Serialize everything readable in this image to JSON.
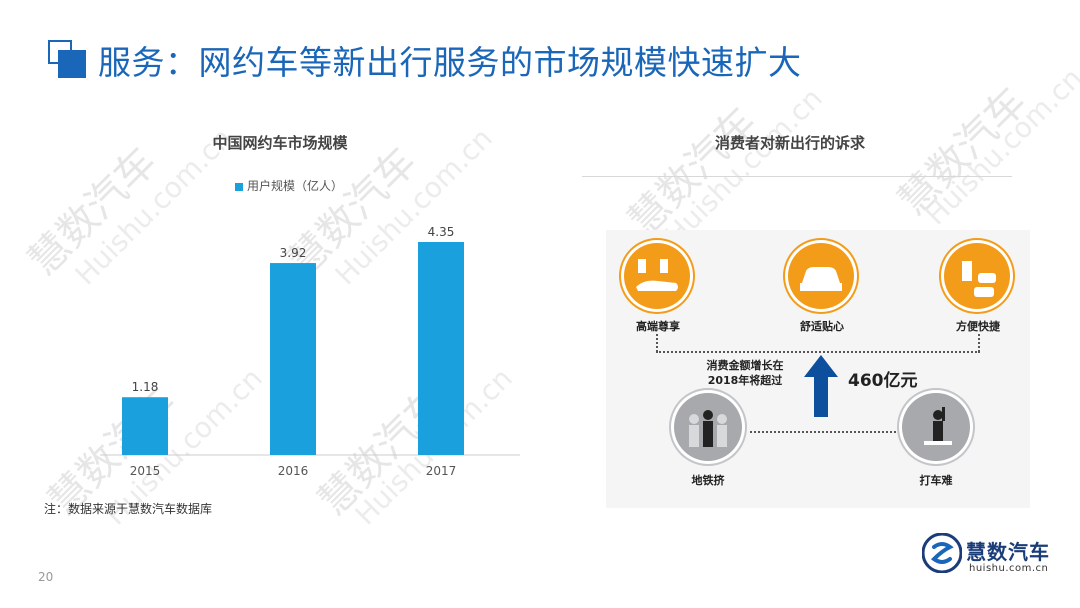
{
  "header": {
    "title": "服务：网约车等新出行服务的市场规模快速扩大"
  },
  "watermark": {
    "text": "慧数汽车",
    "url": "Huishu.com.cn"
  },
  "left_chart": {
    "title": "中国网约车市场规模",
    "legend": "用户规模（亿人）",
    "note": "注：数据来源于慧数汽车数据库"
  },
  "chart_data": {
    "type": "bar",
    "title": "中国网约车市场规模",
    "categories": [
      "2015",
      "2016",
      "2017"
    ],
    "series": [
      {
        "name": "用户规模（亿人）",
        "values": [
          1.18,
          3.92,
          4.35
        ]
      }
    ],
    "ylim": [
      0,
      4.35
    ],
    "grid": false,
    "legend_position": "top",
    "colors": {
      "bar": "#1aa0dc"
    }
  },
  "right_panel": {
    "title": "消费者对新出行的诉求",
    "needs": [
      "高端尊享",
      "舒适贴心",
      "方便快捷"
    ],
    "pains": [
      "地铁挤",
      "打车难"
    ],
    "growth_text_1": "消费金额增长在",
    "growth_text_2": "2018年将超过",
    "growth_value": "460亿元"
  },
  "footer": {
    "page": "20"
  },
  "logo": {
    "name": "慧数汽车",
    "url": "huishu.com.cn"
  },
  "colors": {
    "accent": "#1a66b8",
    "bar": "#1aa0dc",
    "orange": "#f39c1a",
    "grey": "#a7a9ac"
  }
}
